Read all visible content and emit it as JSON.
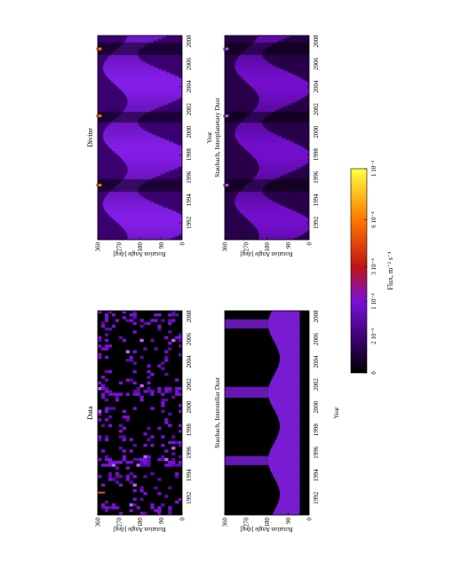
{
  "x_tick_labels": [
    "1992",
    "1994",
    "1996",
    "1998",
    "2000",
    "2002",
    "2004",
    "2006",
    "2008"
  ],
  "y_tick_labels": [
    "0",
    "90",
    "180",
    "270",
    "360"
  ],
  "x_axis_label": "Year",
  "y_axis_label": "Rotation Angle [deg]",
  "colorbar": {
    "label": "Flux, m⁻² s⁻¹",
    "tick_labels": [
      "0",
      "2 10⁻⁵",
      "1 10⁻⁴",
      "3 10⁻⁴",
      "6 10⁻⁴",
      "1 10⁻³"
    ],
    "tick_values": [
      0,
      2e-05,
      0.0001,
      0.0003,
      0.0006,
      0.001
    ],
    "range": [
      0,
      0.001
    ],
    "scale": "nonlinear",
    "colors": [
      "#000000",
      "#3a0068",
      "#7a10d8",
      "#c01414",
      "#ff7800",
      "#ffff40"
    ]
  },
  "chart_data": [
    {
      "type": "heatmap",
      "title": "Data",
      "xlabel": "",
      "ylabel": "Rotation Angle [deg]",
      "xlim": [
        1990.5,
        2008.5
      ],
      "ylim": [
        0,
        360
      ],
      "grid": false
    },
    {
      "type": "heatmap",
      "title": "Divine",
      "xlabel": "Year",
      "ylabel": "Rotation Angle [deg]",
      "xlim": [
        1990.5,
        2008.5
      ],
      "ylim": [
        0,
        360
      ],
      "grid": false
    },
    {
      "type": "heatmap",
      "title": "Staubach, Interstellar Dust",
      "xlabel": "Year",
      "ylabel": "Rotation Angle [deg]",
      "xlim": [
        1990.5,
        2008.5
      ],
      "ylim": [
        0,
        360
      ],
      "grid": false
    },
    {
      "type": "heatmap",
      "title": "Staubach, Interplanetary Dust",
      "xlabel": "Year",
      "ylabel": "Rotation Angle [deg]",
      "xlim": [
        1990.5,
        2008.5
      ],
      "ylim": [
        0,
        360
      ],
      "grid": false
    }
  ]
}
